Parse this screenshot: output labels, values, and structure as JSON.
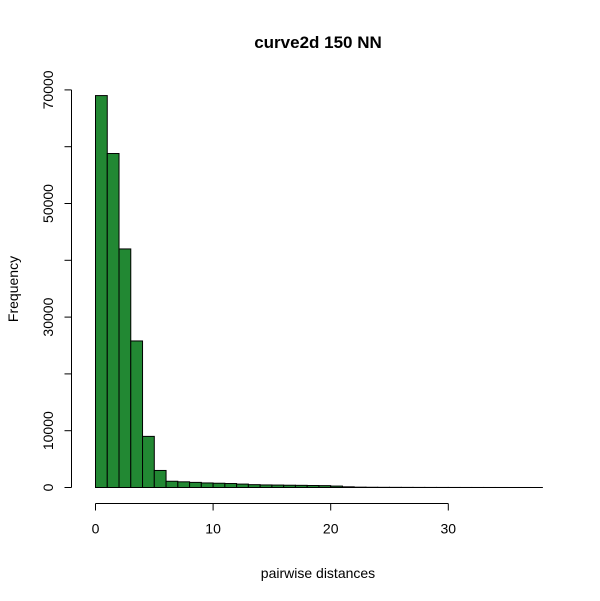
{
  "chart_data": {
    "type": "bar",
    "title": "curve2d 150 NN",
    "xlabel": "pairwise distances",
    "ylabel": "Frequency",
    "bar_color": "#228833",
    "border_color": "#000000",
    "bin_width": 1,
    "bin_starts": [
      0,
      1,
      2,
      3,
      4,
      5,
      6,
      7,
      8,
      9,
      10,
      11,
      12,
      13,
      14,
      15,
      16,
      17,
      18,
      19,
      20,
      21,
      22,
      23,
      24,
      25,
      26,
      27,
      28,
      29,
      30,
      31,
      32,
      33,
      34,
      35,
      36,
      37
    ],
    "values": [
      69000,
      58800,
      42000,
      25800,
      9000,
      3000,
      1100,
      1000,
      900,
      800,
      750,
      700,
      600,
      500,
      450,
      430,
      400,
      380,
      350,
      330,
      250,
      120,
      60,
      40,
      30,
      25,
      20,
      15,
      12,
      10,
      8,
      6,
      5,
      4,
      3,
      2,
      2,
      1
    ],
    "xlim": [
      0,
      38
    ],
    "ylim": [
      0,
      70000
    ],
    "x_ticks": [
      0,
      10,
      20,
      30
    ],
    "y_ticks": [
      0,
      10000,
      30000,
      50000,
      70000
    ],
    "x_tick_labels": [
      "0",
      "10",
      "20",
      "30"
    ],
    "y_tick_labels": [
      "0",
      "10000",
      "30000",
      "50000",
      "70000"
    ],
    "grid": false,
    "legend": "none"
  }
}
